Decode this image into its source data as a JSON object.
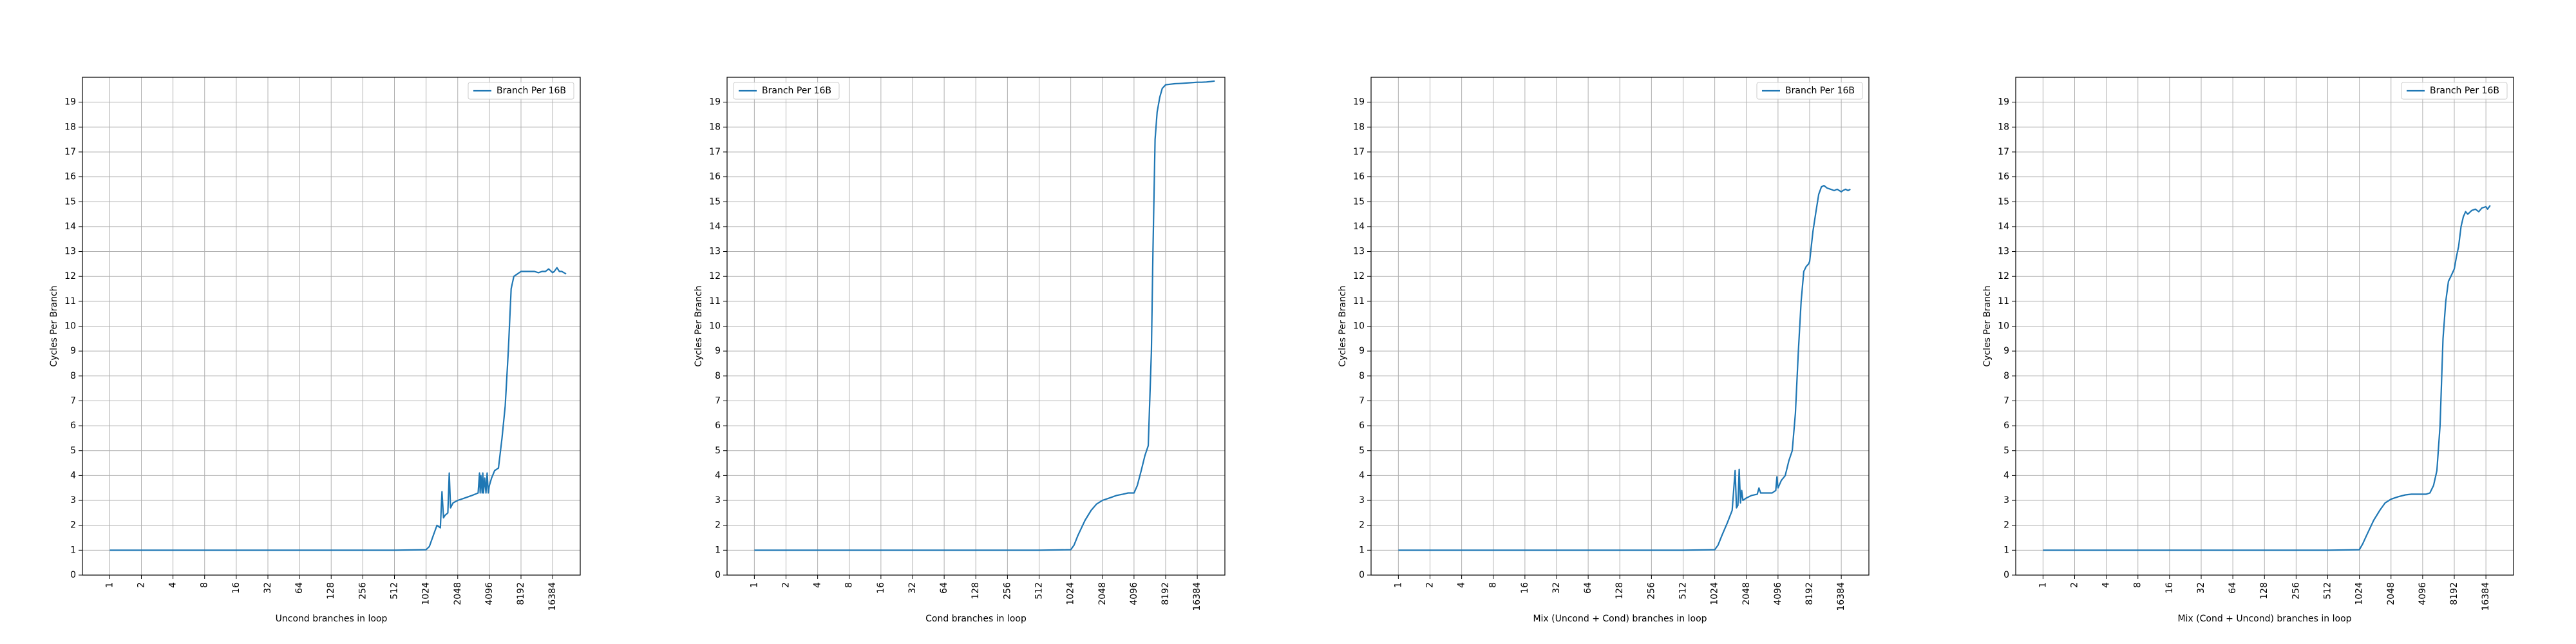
{
  "chart_data": [
    {
      "type": "line",
      "xlabel": "Uncond branches in loop",
      "ylabel": "Cycles Per Branch",
      "xscale": "log2",
      "xlim": [
        0.55,
        30000
      ],
      "ylim": [
        0,
        20
      ],
      "xticks": [
        "1",
        "2",
        "4",
        "8",
        "16",
        "32",
        "64",
        "128",
        "256",
        "512",
        "1024",
        "2048",
        "4096",
        "8192",
        "16384"
      ],
      "yticks": [
        "0",
        "1",
        "2",
        "3",
        "4",
        "5",
        "6",
        "7",
        "8",
        "9",
        "10",
        "11",
        "12",
        "13",
        "14",
        "15",
        "16",
        "17",
        "18",
        "19"
      ],
      "grid": true,
      "legend_position": "upper right",
      "series": [
        {
          "name": "Branch Per 16B",
          "color": "#1f77b4",
          "x": [
            1,
            2,
            4,
            8,
            16,
            32,
            64,
            128,
            256,
            512,
            1024,
            1100,
            1200,
            1300,
            1400,
            1450,
            1500,
            1550,
            1650,
            1700,
            1750,
            1850,
            2048,
            2400,
            2800,
            3000,
            3200,
            3300,
            3350,
            3400,
            3500,
            3550,
            3600,
            3700,
            3800,
            3900,
            4000,
            4100,
            4300,
            4600,
            5000,
            5400,
            5800,
            6200,
            6600,
            7000,
            8192,
            9000,
            10000,
            11000,
            12000,
            13000,
            14000,
            15000,
            16384,
            17000,
            18000,
            19000,
            20000,
            21000,
            22000
          ],
          "y": [
            1.0,
            1.0,
            1.0,
            1.0,
            1.0,
            1.0,
            1.0,
            1.0,
            1.0,
            1.0,
            1.02,
            1.15,
            1.6,
            2.0,
            1.9,
            3.35,
            2.3,
            2.4,
            2.5,
            4.1,
            2.7,
            2.9,
            3.0,
            3.1,
            3.2,
            3.25,
            3.3,
            4.1,
            3.3,
            4.0,
            3.3,
            4.1,
            3.3,
            3.9,
            3.3,
            4.1,
            3.3,
            3.6,
            3.9,
            4.2,
            4.3,
            5.5,
            6.8,
            9.0,
            11.5,
            12.0,
            12.2,
            12.2,
            12.2,
            12.2,
            12.15,
            12.2,
            12.2,
            12.3,
            12.15,
            12.2,
            12.35,
            12.2,
            12.2,
            12.15,
            12.1
          ]
        }
      ]
    },
    {
      "type": "line",
      "xlabel": "Cond branches in loop",
      "ylabel": "Cycles Per Branch",
      "xscale": "log2",
      "xlim": [
        0.55,
        30000
      ],
      "ylim": [
        0,
        20
      ],
      "xticks": [
        "1",
        "2",
        "4",
        "8",
        "16",
        "32",
        "64",
        "128",
        "256",
        "512",
        "1024",
        "2048",
        "4096",
        "8192",
        "16384"
      ],
      "yticks": [
        "0",
        "1",
        "2",
        "3",
        "4",
        "5",
        "6",
        "7",
        "8",
        "9",
        "10",
        "11",
        "12",
        "13",
        "14",
        "15",
        "16",
        "17",
        "18",
        "19"
      ],
      "grid": true,
      "legend_position": "upper left",
      "series": [
        {
          "name": "Branch Per 16B",
          "color": "#1f77b4",
          "x": [
            1,
            2,
            4,
            8,
            16,
            32,
            64,
            128,
            256,
            512,
            1024,
            1100,
            1200,
            1400,
            1600,
            1800,
            2048,
            2400,
            2800,
            3200,
            3600,
            4096,
            4400,
            4800,
            5200,
            5600,
            6000,
            6200,
            6500,
            6800,
            7200,
            7600,
            8192,
            9000,
            10000,
            11000,
            12000,
            14000,
            16384,
            18000,
            20000,
            22000,
            24000
          ],
          "y": [
            1.0,
            1.0,
            1.0,
            1.0,
            1.0,
            1.0,
            1.0,
            1.0,
            1.0,
            1.0,
            1.02,
            1.2,
            1.6,
            2.2,
            2.6,
            2.85,
            3.0,
            3.1,
            3.2,
            3.25,
            3.3,
            3.3,
            3.6,
            4.2,
            4.8,
            5.2,
            9.0,
            13.0,
            17.5,
            18.6,
            19.2,
            19.55,
            19.7,
            19.72,
            19.74,
            19.75,
            19.76,
            19.78,
            19.8,
            19.8,
            19.81,
            19.83,
            19.85
          ]
        }
      ]
    },
    {
      "type": "line",
      "xlabel": "Mix (Uncond + Cond) branches in loop",
      "ylabel": "Cycles Per Branch",
      "xscale": "log2",
      "xlim": [
        0.55,
        30000
      ],
      "ylim": [
        0,
        20
      ],
      "xticks": [
        "1",
        "2",
        "4",
        "8",
        "16",
        "32",
        "64",
        "128",
        "256",
        "512",
        "1024",
        "2048",
        "4096",
        "8192",
        "16384"
      ],
      "yticks": [
        "0",
        "1",
        "2",
        "3",
        "4",
        "5",
        "6",
        "7",
        "8",
        "9",
        "10",
        "11",
        "12",
        "13",
        "14",
        "15",
        "16",
        "17",
        "18",
        "19"
      ],
      "grid": true,
      "legend_position": "upper right",
      "series": [
        {
          "name": "Branch Per 16B",
          "color": "#1f77b4",
          "x": [
            1,
            2,
            4,
            8,
            16,
            32,
            64,
            128,
            256,
            512,
            1024,
            1100,
            1200,
            1350,
            1500,
            1600,
            1650,
            1700,
            1750,
            1800,
            1850,
            1900,
            2048,
            2300,
            2600,
            2700,
            2800,
            3000,
            3300,
            3600,
            3900,
            4000,
            4100,
            4400,
            4800,
            5200,
            5600,
            6000,
            6400,
            6800,
            7200,
            7600,
            8000,
            8192,
            8800,
            9400,
            10000,
            10600,
            11200,
            12000,
            13000,
            14000,
            15000,
            16384,
            17000,
            18000,
            19000,
            20000
          ],
          "y": [
            1.0,
            1.0,
            1.0,
            1.0,
            1.0,
            1.0,
            1.0,
            1.0,
            1.0,
            1.0,
            1.02,
            1.2,
            1.6,
            2.1,
            2.6,
            4.2,
            2.7,
            2.8,
            4.25,
            2.9,
            3.4,
            3.0,
            3.1,
            3.2,
            3.25,
            3.5,
            3.3,
            3.3,
            3.3,
            3.3,
            3.4,
            3.95,
            3.5,
            3.8,
            4.0,
            4.6,
            5.0,
            6.5,
            9.0,
            11.0,
            12.2,
            12.4,
            12.5,
            12.6,
            13.8,
            14.6,
            15.3,
            15.6,
            15.65,
            15.55,
            15.5,
            15.45,
            15.5,
            15.4,
            15.45,
            15.5,
            15.45,
            15.5
          ]
        }
      ]
    },
    {
      "type": "line",
      "xlabel": "Mix (Cond + Uncond) branches in loop",
      "ylabel": "Cycles Per Branch",
      "xscale": "log2",
      "xlim": [
        0.55,
        30000
      ],
      "ylim": [
        0,
        20
      ],
      "xticks": [
        "1",
        "2",
        "4",
        "8",
        "16",
        "32",
        "64",
        "128",
        "256",
        "512",
        "1024",
        "2048",
        "4096",
        "8192",
        "16384"
      ],
      "yticks": [
        "0",
        "1",
        "2",
        "3",
        "4",
        "5",
        "6",
        "7",
        "8",
        "9",
        "10",
        "11",
        "12",
        "13",
        "14",
        "15",
        "16",
        "17",
        "18",
        "19"
      ],
      "grid": true,
      "legend_position": "upper right",
      "series": [
        {
          "name": "Branch Per 16B",
          "color": "#1f77b4",
          "x": [
            1,
            2,
            4,
            8,
            16,
            32,
            64,
            128,
            256,
            512,
            1024,
            1100,
            1200,
            1400,
            1600,
            1800,
            2048,
            2400,
            2800,
            3200,
            3600,
            4096,
            4400,
            4800,
            5200,
            5600,
            6000,
            6400,
            6800,
            7200,
            7600,
            8192,
            8600,
            9000,
            9500,
            10000,
            10500,
            11000,
            12000,
            13000,
            14000,
            15000,
            16384,
            17000,
            18000
          ],
          "y": [
            1.0,
            1.0,
            1.0,
            1.0,
            1.0,
            1.0,
            1.0,
            1.0,
            1.0,
            1.0,
            1.02,
            1.25,
            1.6,
            2.2,
            2.6,
            2.9,
            3.05,
            3.15,
            3.22,
            3.25,
            3.25,
            3.25,
            3.25,
            3.3,
            3.6,
            4.2,
            6.0,
            9.5,
            11.0,
            11.8,
            12.0,
            12.3,
            12.8,
            13.2,
            14.0,
            14.4,
            14.6,
            14.5,
            14.65,
            14.7,
            14.6,
            14.75,
            14.8,
            14.7,
            14.85
          ]
        }
      ]
    }
  ]
}
